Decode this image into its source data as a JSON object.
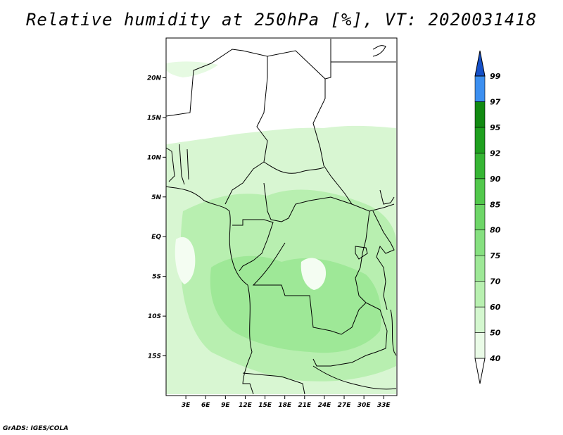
{
  "title": "Relative humidity at 250hPa [%], VT: 2020031418",
  "credit": "GrADS: IGES/COLA",
  "map": {
    "lon_range": [
      0,
      35
    ],
    "lat_range": [
      -20,
      25
    ],
    "lat_ticks": [
      {
        "value": 20,
        "label": "20N"
      },
      {
        "value": 15,
        "label": "15N"
      },
      {
        "value": 10,
        "label": "10N"
      },
      {
        "value": 5,
        "label": "5N"
      },
      {
        "value": 0,
        "label": "EQ"
      },
      {
        "value": -5,
        "label": "5S"
      },
      {
        "value": -10,
        "label": "10S"
      },
      {
        "value": -15,
        "label": "15S"
      }
    ],
    "lon_ticks": [
      {
        "value": 3,
        "label": "3E"
      },
      {
        "value": 6,
        "label": "6E"
      },
      {
        "value": 9,
        "label": "9E"
      },
      {
        "value": 12,
        "label": "12E"
      },
      {
        "value": 15,
        "label": "15E"
      },
      {
        "value": 18,
        "label": "18E"
      },
      {
        "value": 21,
        "label": "21E"
      },
      {
        "value": 24,
        "label": "24E"
      },
      {
        "value": 27,
        "label": "27E"
      },
      {
        "value": 30,
        "label": "30E"
      },
      {
        "value": 33,
        "label": "33E"
      }
    ]
  },
  "colorbar": {
    "levels": [
      {
        "label": "40",
        "color": "#eafbe7"
      },
      {
        "label": "50",
        "color": "#d4f7cf"
      },
      {
        "label": "60",
        "color": "#b8f0b0"
      },
      {
        "label": "70",
        "color": "#9ee897"
      },
      {
        "label": "75",
        "color": "#86e080"
      },
      {
        "label": "80",
        "color": "#6ed668"
      },
      {
        "label": "85",
        "color": "#52c84c"
      },
      {
        "label": "90",
        "color": "#36b534"
      },
      {
        "label": "92",
        "color": "#1fa01f"
      },
      {
        "label": "95",
        "color": "#128a12"
      },
      {
        "label": "97",
        "color": "#3c8ff0"
      },
      {
        "label": "99",
        "color": "#1f6fe0"
      }
    ],
    "top_color": "#1550c8"
  }
}
